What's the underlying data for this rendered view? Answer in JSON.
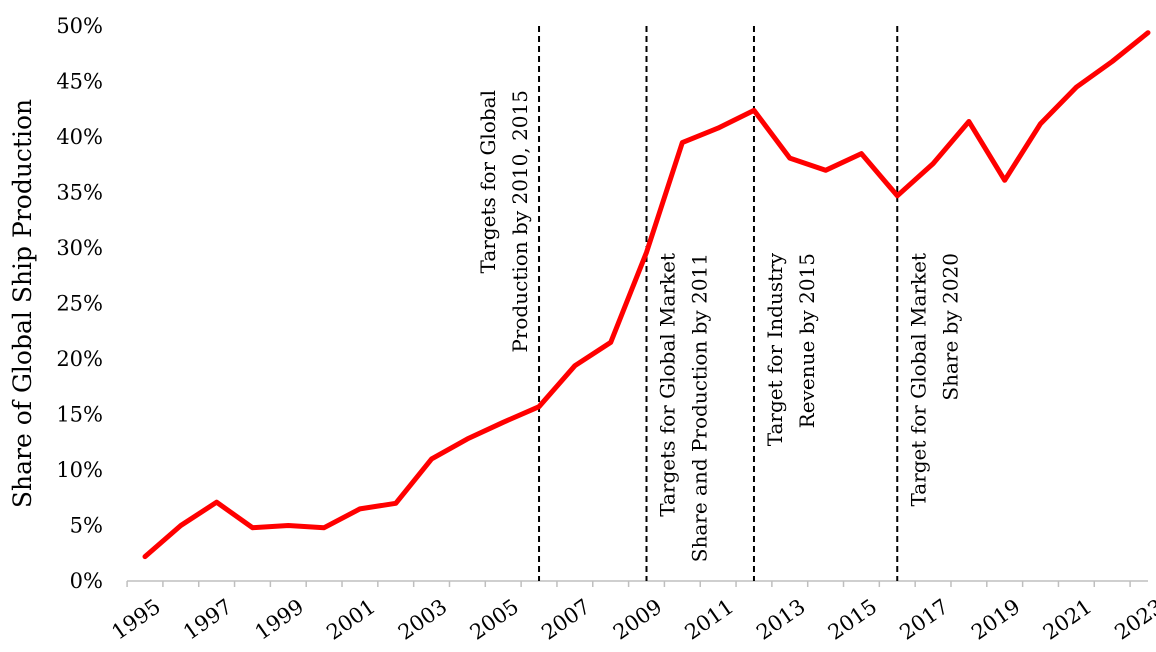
{
  "chart_data": {
    "type": "line",
    "title": "",
    "xlabel": "",
    "ylabel": "Share of Global Ship Production",
    "ylim": [
      0,
      50
    ],
    "y_ticks": [
      "0%",
      "5%",
      "10%",
      "15%",
      "20%",
      "25%",
      "30%",
      "35%",
      "40%",
      "45%",
      "50%"
    ],
    "x_tick_labels": [
      "1995",
      "1997",
      "1999",
      "2001",
      "2003",
      "2005",
      "2007",
      "2009",
      "2011",
      "2013",
      "2015",
      "2017",
      "2019",
      "2021",
      "2023"
    ],
    "grid": false,
    "legend": "none",
    "line_color": "#ff0000",
    "series": [
      {
        "x": [
          1995,
          1996,
          1997,
          1998,
          1999,
          2000,
          2001,
          2002,
          2003,
          2004,
          2005,
          2006,
          2007,
          2008,
          2009,
          2010,
          2011,
          2012,
          2013,
          2014,
          2015,
          2016,
          2017,
          2018,
          2019,
          2020,
          2021,
          2022,
          2023
        ],
        "values": [
          2.2,
          5.0,
          7.1,
          4.8,
          5.0,
          4.8,
          6.5,
          7.0,
          11.0,
          12.8,
          14.3,
          15.7,
          19.4,
          21.5,
          29.6,
          39.5,
          40.8,
          42.4,
          38.1,
          37.0,
          38.5,
          34.7,
          37.6,
          41.4,
          36.1,
          41.2,
          44.5,
          46.8,
          49.4
        ]
      }
    ],
    "annotations": [
      {
        "x": 2006,
        "lines": [
          "Targets for Global",
          "Production by 2010, 2015"
        ]
      },
      {
        "x": 2009,
        "lines": [
          "Targets for Global Market",
          "Share and Production by 2011"
        ]
      },
      {
        "x": 2012,
        "lines": [
          "Target for Industry",
          "Revenue by 2015"
        ]
      },
      {
        "x": 2016,
        "lines": [
          "Target for Global Market",
          "Share by 2020"
        ]
      }
    ]
  }
}
